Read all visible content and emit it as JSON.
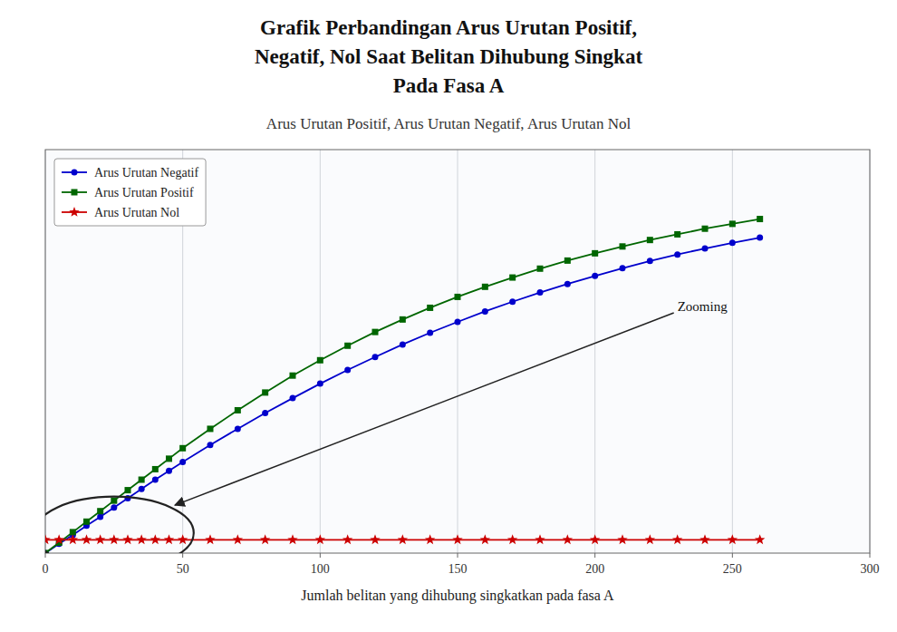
{
  "chart_data": {
    "type": "line",
    "title": [
      "Grafik Perbandingan Arus Urutan Positif,",
      "Negatif, Nol Saat Belitan Dihubung Singkat",
      "Pada Fasa A"
    ],
    "subtitle": "Arus Urutan Positif, Arus Urutan Negatif, Arus Urutan Nol",
    "x_label": "Jumlah belitan yang dihubung singkatkan pada fasa A",
    "x": [
      0,
      5,
      10,
      15,
      20,
      25,
      30,
      35,
      40,
      45,
      50,
      60,
      70,
      80,
      90,
      100,
      110,
      120,
      130,
      140,
      150,
      160,
      170,
      180,
      190,
      200,
      210,
      220,
      230,
      240,
      250,
      260
    ],
    "series": [
      {
        "name": "Arus Urutan Negatif",
        "color": "#0000cc",
        "marker": "circle",
        "values": [
          0.0,
          0.023,
          0.045,
          0.068,
          0.09,
          0.113,
          0.136,
          0.159,
          0.182,
          0.204,
          0.226,
          0.268,
          0.308,
          0.347,
          0.384,
          0.42,
          0.454,
          0.486,
          0.517,
          0.546,
          0.573,
          0.599,
          0.623,
          0.646,
          0.667,
          0.687,
          0.706,
          0.724,
          0.74,
          0.755,
          0.769,
          0.782
        ]
      },
      {
        "name": "Arus Urutan Positif",
        "color": "#006600",
        "marker": "square",
        "values": [
          0.0,
          0.026,
          0.052,
          0.078,
          0.104,
          0.13,
          0.156,
          0.182,
          0.208,
          0.234,
          0.26,
          0.308,
          0.354,
          0.398,
          0.44,
          0.478,
          0.514,
          0.548,
          0.579,
          0.608,
          0.635,
          0.66,
          0.683,
          0.705,
          0.725,
          0.743,
          0.76,
          0.776,
          0.79,
          0.804,
          0.816,
          0.828
        ]
      },
      {
        "name": "Arus Urutan Nol",
        "color": "#cc0000",
        "marker": "star",
        "values": [
          0.033,
          0.033,
          0.033,
          0.033,
          0.033,
          0.033,
          0.033,
          0.033,
          0.033,
          0.033,
          0.033,
          0.033,
          0.033,
          0.033,
          0.033,
          0.033,
          0.033,
          0.033,
          0.033,
          0.033,
          0.033,
          0.033,
          0.033,
          0.033,
          0.033,
          0.033,
          0.033,
          0.033,
          0.033,
          0.033,
          0.033,
          0.033
        ]
      }
    ],
    "xlim": [
      0,
      300
    ],
    "xticks": [
      0,
      50,
      100,
      150,
      200,
      250,
      300
    ],
    "ylim": [
      0,
      1.0
    ],
    "tick_labels": "x",
    "grid": true,
    "legend": "upper left",
    "annotations": [
      {
        "text": "Zooming",
        "x": 230,
        "y": 0.6
      }
    ]
  }
}
